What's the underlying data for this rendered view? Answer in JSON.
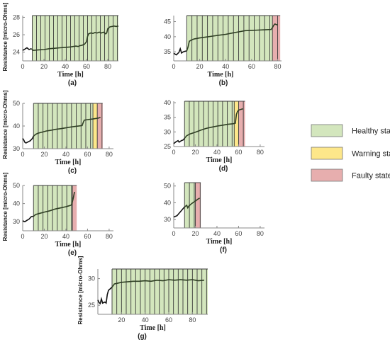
{
  "colors": {
    "healthy": "#d3e6bd",
    "warning": "#fde78a",
    "faulty": "#e7aeae",
    "stripe": "#3a3a3a",
    "axis": "#888888",
    "curve": "#2f3f24",
    "curve_pre": "#111111"
  },
  "legend": [
    {
      "key": "healthy",
      "label": "Healthy state"
    },
    {
      "key": "warning",
      "label": "Warning state"
    },
    {
      "key": "faulty",
      "label": "Faulty state"
    }
  ],
  "chart_data": [
    {
      "type": "line",
      "caption": "(a)",
      "xlabel": "Time [h]",
      "ylabel": "Resistance [micro-Ohms]",
      "xlim": [
        0,
        90
      ],
      "ylim": [
        23,
        28.2
      ],
      "xticks": [
        0,
        20,
        40,
        60,
        80
      ],
      "yticks": [
        24,
        26,
        28
      ],
      "regions": [
        {
          "state": "healthy",
          "from": 9,
          "to": 91
        }
      ],
      "stripe_step": 4,
      "series": [
        {
          "x": [
            0,
            2,
            4,
            6,
            8,
            10,
            14,
            20,
            25,
            30,
            35,
            40,
            45,
            50,
            52,
            54,
            56,
            58,
            60,
            61,
            62,
            64,
            66,
            68,
            70,
            72,
            74,
            76,
            78,
            79,
            80,
            82,
            84,
            86,
            88,
            90
          ],
          "y": [
            24.2,
            24.35,
            24.5,
            24.3,
            24.4,
            24.2,
            24.25,
            24.3,
            24.4,
            24.45,
            24.5,
            24.55,
            24.6,
            24.7,
            24.65,
            24.75,
            24.8,
            24.9,
            25.2,
            25.8,
            26.1,
            26.2,
            26.15,
            26.25,
            26.2,
            26.3,
            26.2,
            26.3,
            26.1,
            26.2,
            26.7,
            26.9,
            26.95,
            27.0,
            26.95,
            27.0
          ]
        }
      ]
    },
    {
      "type": "line",
      "caption": "(b)",
      "xlabel": "Time [h]",
      "ylabel": "",
      "xlim": [
        0,
        83
      ],
      "ylim": [
        32,
        47
      ],
      "xticks": [
        0,
        20,
        40,
        60,
        80
      ],
      "yticks": [
        35,
        40,
        45
      ],
      "regions": [
        {
          "state": "healthy",
          "from": 10,
          "to": 76
        },
        {
          "state": "faulty",
          "from": 76,
          "to": 82
        }
      ],
      "stripe_step": 4,
      "series": [
        {
          "x": [
            0,
            2,
            4,
            5,
            6,
            7,
            8,
            10,
            11,
            12,
            14,
            16,
            20,
            25,
            30,
            35,
            40,
            45,
            50,
            55,
            60,
            65,
            70,
            75,
            76,
            77,
            78,
            79,
            80
          ],
          "y": [
            34.5,
            34.0,
            34.8,
            36.0,
            34.6,
            34.9,
            35.1,
            35.3,
            36.5,
            38.5,
            39.0,
            39.3,
            39.6,
            39.9,
            40.2,
            40.5,
            40.8,
            41.2,
            41.6,
            42.0,
            42.1,
            42.2,
            42.3,
            42.4,
            43.0,
            43.8,
            44.2,
            44.0,
            43.9
          ]
        }
      ]
    },
    {
      "type": "line",
      "caption": "(c)",
      "xlabel": "Time [h]",
      "ylabel": "Resistance [micro-Ohms]",
      "xlim": [
        0,
        84
      ],
      "ylim": [
        30,
        50
      ],
      "xticks": [
        0,
        20,
        40,
        60,
        80
      ],
      "yticks": [
        30,
        40,
        50
      ],
      "regions": [
        {
          "state": "healthy",
          "from": 10,
          "to": 65
        },
        {
          "state": "warning",
          "from": 65,
          "to": 69
        },
        {
          "state": "faulty",
          "from": 69,
          "to": 74
        }
      ],
      "stripe_step": 4.4,
      "series": [
        {
          "x": [
            0,
            1,
            2,
            3,
            5,
            7,
            9,
            10,
            12,
            14,
            18,
            22,
            26,
            30,
            35,
            40,
            45,
            50,
            55,
            56,
            57,
            60,
            65,
            70,
            72
          ],
          "y": [
            34.5,
            33.8,
            32.8,
            32.5,
            33.0,
            33.5,
            34.5,
            35.5,
            36.3,
            36.8,
            37.3,
            37.8,
            38.1,
            38.5,
            38.8,
            39.2,
            39.6,
            39.9,
            40.2,
            41.5,
            42.6,
            42.8,
            43.1,
            43.5,
            43.8
          ]
        }
      ]
    },
    {
      "type": "line",
      "caption": "(d)",
      "xlabel": "Time [h]",
      "ylabel": "",
      "xlim": [
        0,
        84
      ],
      "ylim": [
        25,
        40.5
      ],
      "xticks": [
        0,
        20,
        40,
        60,
        80
      ],
      "yticks": [
        25,
        30,
        35,
        40
      ],
      "regions": [
        {
          "state": "healthy",
          "from": 10,
          "to": 56
        },
        {
          "state": "warning",
          "from": 56,
          "to": 60
        },
        {
          "state": "faulty",
          "from": 60,
          "to": 66
        }
      ],
      "stripe_step": 4.4,
      "series": [
        {
          "x": [
            0,
            2,
            4,
            5,
            7,
            9,
            10,
            12,
            15,
            20,
            25,
            30,
            35,
            40,
            45,
            50,
            55,
            57,
            58,
            59,
            60,
            61,
            62,
            64
          ],
          "y": [
            26.0,
            26.6,
            27.0,
            26.5,
            27.0,
            27.3,
            27.8,
            28.7,
            29.3,
            29.9,
            30.6,
            31.2,
            31.6,
            32.0,
            32.3,
            32.6,
            32.8,
            33.0,
            36.0,
            37.0,
            37.4,
            37.6,
            37.7,
            37.9
          ]
        }
      ]
    },
    {
      "type": "line",
      "caption": "(e)",
      "xlabel": "Time [h]",
      "ylabel": "Resistance [micro-Ohms]",
      "xlim": [
        0,
        84
      ],
      "ylim": [
        25,
        50
      ],
      "xticks": [
        0,
        20,
        40,
        60,
        80
      ],
      "yticks": [
        30,
        40,
        50
      ],
      "regions": [
        {
          "state": "healthy",
          "from": 10,
          "to": 46
        },
        {
          "state": "faulty",
          "from": 46,
          "to": 50
        }
      ],
      "stripe_step": 4.4,
      "series": [
        {
          "x": [
            0,
            2,
            4,
            6,
            8,
            10,
            12,
            15,
            20,
            25,
            30,
            35,
            40,
            43,
            45,
            46,
            47,
            48
          ],
          "y": [
            30.5,
            30.0,
            30.8,
            31.5,
            32.8,
            33.0,
            34.0,
            34.5,
            35.3,
            36.0,
            37.0,
            37.6,
            38.3,
            38.8,
            39.2,
            41.0,
            43.5,
            46.5
          ]
        }
      ]
    },
    {
      "type": "line",
      "caption": "(f)",
      "xlabel": "Time [h]",
      "ylabel": "",
      "xlim": [
        0,
        84
      ],
      "ylim": [
        25,
        52
      ],
      "xticks": [
        0,
        20,
        40,
        60,
        80
      ],
      "yticks": [
        30,
        40,
        50
      ],
      "regions": [
        {
          "state": "healthy",
          "from": 10,
          "to": 20
        },
        {
          "state": "faulty",
          "from": 20,
          "to": 25
        }
      ],
      "stripe_step": 4.5,
      "series": [
        {
          "x": [
            0,
            2,
            3,
            4,
            6,
            8,
            10,
            12,
            13,
            14,
            16,
            18,
            20,
            22,
            24
          ],
          "y": [
            31.5,
            32.0,
            32.3,
            33.0,
            34.5,
            36.0,
            37.5,
            38.5,
            37.0,
            38.0,
            39.2,
            40.2,
            41.0,
            42.0,
            42.8
          ]
        }
      ]
    },
    {
      "type": "line",
      "caption": "(g)",
      "xlabel": "Time [h]",
      "ylabel": "Resistance [micro-Ohms]",
      "xlim": [
        0,
        93
      ],
      "ylim": [
        23.3,
        31.8
      ],
      "xticks": [
        20,
        40,
        60,
        80
      ],
      "yticks": [
        25,
        30
      ],
      "regions": [
        {
          "state": "healthy",
          "from": 12,
          "to": 93
        }
      ],
      "stripe_step": 4,
      "series": [
        {
          "x": [
            0,
            1,
            2,
            3,
            4,
            5,
            6,
            7,
            8,
            9,
            10,
            12,
            14,
            16,
            20,
            25,
            30,
            35,
            40,
            45,
            50,
            55,
            60,
            65,
            70,
            75,
            80,
            85,
            90
          ],
          "y": [
            26.0,
            25.5,
            25.3,
            26.2,
            25.4,
            25.5,
            25.6,
            25.4,
            27.0,
            27.8,
            28.0,
            28.4,
            29.0,
            29.1,
            29.3,
            29.4,
            29.5,
            29.5,
            29.6,
            29.5,
            29.7,
            29.6,
            29.8,
            29.7,
            29.8,
            29.7,
            29.8,
            29.6,
            29.7
          ]
        }
      ]
    }
  ]
}
